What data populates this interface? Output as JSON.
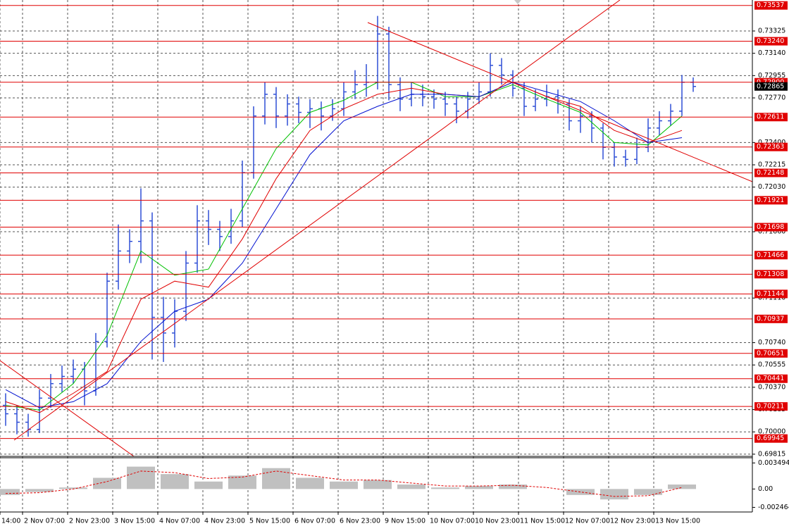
{
  "chart_data": {
    "type": "ohlc",
    "xlim": [
      -2,
      64.75
    ],
    "xticks": [
      {
        "value": -2,
        "label": "14:00"
      },
      {
        "value": 0,
        "label": "2 Nov 07:00"
      },
      {
        "value": 4,
        "label": "2 Nov 23:00"
      },
      {
        "value": 8,
        "label": "3 Nov 15:00"
      },
      {
        "value": 12,
        "label": "4 Nov 07:00"
      },
      {
        "value": 16,
        "label": "4 Nov 23:00"
      },
      {
        "value": 20,
        "label": "5 Nov 15:00"
      },
      {
        "value": 24,
        "label": "6 Nov 07:00"
      },
      {
        "value": 28,
        "label": "6 Nov 23:00"
      },
      {
        "value": 32,
        "label": "9 Nov 15:00"
      },
      {
        "value": 36,
        "label": "10 Nov 07:00"
      },
      {
        "value": 40,
        "label": "10 Nov 23:00"
      },
      {
        "value": 44,
        "label": "11 Nov 15:00"
      },
      {
        "value": 48,
        "label": "12 Nov 07:00"
      },
      {
        "value": 52,
        "label": "12 Nov 23:00"
      },
      {
        "value": 56,
        "label": "13 Nov 15:00"
      }
    ],
    "ylim": [
      0.69797,
      0.73582
    ],
    "yticks": [
      0.73325,
      {
        "value": 0.7314,
        "label": "0.73140"
      },
      0.72955,
      {
        "value": 0.7277,
        "label": "0.72770"
      },
      {
        "value": 0.724,
        "label": "0.72400"
      },
      0.72215,
      {
        "value": 0.7203,
        "label": "0.72030"
      },
      {
        "value": 0.7166,
        "label": "0.71660"
      },
      {
        "value": 0.7111,
        "label": "0.71110"
      },
      {
        "value": 0.7074,
        "label": "0.70740"
      },
      0.70555,
      {
        "value": 0.7037,
        "label": "0.70370"
      },
      0.70185,
      {
        "value": 0.7,
        "label": "0.70000"
      },
      0.69815
    ],
    "grid": true,
    "bars": {
      "color": "#2f4fd6",
      "open": [
        0.7022,
        0.7015,
        0.7008,
        0.7002,
        0.7028,
        0.704,
        0.7046,
        0.7052,
        0.7034,
        0.7075,
        0.7125,
        0.715,
        0.7158,
        0.7175,
        0.7095,
        0.7082,
        0.71,
        0.714,
        0.7175,
        0.7168,
        0.7162,
        0.7175,
        0.7215,
        0.7262,
        0.728,
        0.7262,
        0.7272,
        0.7265,
        0.7268,
        0.7262,
        0.7268,
        0.7282,
        0.7288,
        0.729,
        0.733,
        0.7288,
        0.7276,
        0.728,
        0.7278,
        0.7276,
        0.7272,
        0.7266,
        0.7276,
        0.7282,
        0.7304,
        0.7296,
        0.7285,
        0.727,
        0.7276,
        0.7278,
        0.7272,
        0.7258,
        0.7262,
        0.7252,
        0.7236,
        0.7228,
        0.7226,
        0.7236,
        0.7252,
        0.7258,
        0.7266,
        0.729
      ],
      "high": [
        0.7032,
        0.7022,
        0.7015,
        0.7035,
        0.7048,
        0.7055,
        0.706,
        0.7058,
        0.7082,
        0.7132,
        0.7172,
        0.7168,
        0.7202,
        0.7182,
        0.7112,
        0.711,
        0.715,
        0.7188,
        0.7184,
        0.7175,
        0.7185,
        0.7225,
        0.727,
        0.729,
        0.7286,
        0.728,
        0.7278,
        0.7276,
        0.7274,
        0.7276,
        0.729,
        0.73,
        0.7305,
        0.7345,
        0.7336,
        0.7294,
        0.729,
        0.7288,
        0.7284,
        0.7282,
        0.7278,
        0.7282,
        0.729,
        0.7314,
        0.731,
        0.73,
        0.729,
        0.7284,
        0.7288,
        0.7284,
        0.7276,
        0.727,
        0.7266,
        0.7256,
        0.724,
        0.7234,
        0.7244,
        0.726,
        0.7266,
        0.7272,
        0.7296,
        0.7294
      ],
      "low": [
        0.7005,
        0.6998,
        0.6996,
        0.6999,
        0.702,
        0.7033,
        0.704,
        0.7022,
        0.703,
        0.707,
        0.7118,
        0.714,
        0.714,
        0.706,
        0.7058,
        0.707,
        0.7092,
        0.7132,
        0.7155,
        0.715,
        0.7156,
        0.717,
        0.721,
        0.7255,
        0.7252,
        0.7254,
        0.7256,
        0.7252,
        0.725,
        0.7258,
        0.7262,
        0.7276,
        0.7278,
        0.7284,
        0.7275,
        0.7266,
        0.727,
        0.727,
        0.7268,
        0.7262,
        0.7256,
        0.726,
        0.7272,
        0.7278,
        0.7288,
        0.7278,
        0.7262,
        0.7266,
        0.727,
        0.7264,
        0.725,
        0.7248,
        0.724,
        0.7226,
        0.722,
        0.722,
        0.7222,
        0.7232,
        0.7246,
        0.7254,
        0.7262,
        0.7282
      ],
      "close": [
        0.7015,
        0.7008,
        0.7002,
        0.7028,
        0.704,
        0.7046,
        0.7052,
        0.7034,
        0.7075,
        0.7125,
        0.715,
        0.7158,
        0.7175,
        0.7095,
        0.7082,
        0.71,
        0.714,
        0.7175,
        0.7168,
        0.7162,
        0.7175,
        0.7215,
        0.7262,
        0.728,
        0.7262,
        0.7272,
        0.7265,
        0.7268,
        0.7262,
        0.7268,
        0.7282,
        0.7288,
        0.729,
        0.733,
        0.7288,
        0.7276,
        0.728,
        0.7278,
        0.7276,
        0.7272,
        0.7266,
        0.7276,
        0.7282,
        0.7304,
        0.7296,
        0.7285,
        0.727,
        0.7276,
        0.7278,
        0.7272,
        0.7258,
        0.7262,
        0.7252,
        0.7236,
        0.7228,
        0.7226,
        0.7236,
        0.7252,
        0.7258,
        0.7266,
        0.729,
        0.72865
      ]
    },
    "lines": {
      "x": [
        -1.5,
        1.5,
        4.5,
        7.5,
        10.5,
        13.5,
        16.5,
        19.5,
        22.5,
        25.5,
        28.5,
        31.5,
        34.5,
        37.5,
        40.5,
        43.5,
        46.5,
        49.5,
        52.5,
        55.5,
        58.5
      ],
      "series": [
        {
          "color": "#00c000",
          "values": [
            0.7022,
            0.7018,
            0.704,
            0.708,
            0.715,
            0.713,
            0.7135,
            0.7185,
            0.7235,
            0.7265,
            0.7275,
            0.729,
            0.729,
            0.7278,
            0.7278,
            0.7288,
            0.7276,
            0.7265,
            0.724,
            0.7238,
            0.7262
          ]
        },
        {
          "color": "#e00000",
          "values": [
            0.7025,
            0.7016,
            0.7032,
            0.705,
            0.711,
            0.7125,
            0.712,
            0.716,
            0.721,
            0.725,
            0.7268,
            0.728,
            0.7285,
            0.728,
            0.7278,
            0.729,
            0.7278,
            0.727,
            0.725,
            0.724,
            0.725
          ]
        },
        {
          "color": "#0010d0",
          "values": [
            0.7035,
            0.702,
            0.7025,
            0.704,
            0.7075,
            0.71,
            0.711,
            0.714,
            0.7185,
            0.723,
            0.7258,
            0.727,
            0.728,
            0.728,
            0.7278,
            0.729,
            0.7282,
            0.7274,
            0.7258,
            0.724,
            0.7244
          ]
        }
      ]
    },
    "levels": [
      0.73537,
      {
        "value": 0.7324,
        "label": "0.73240"
      },
      {
        "value": 0.729,
        "label": "0.72900"
      },
      0.72611,
      0.72363,
      0.72148,
      0.71921,
      0.71698,
      0.71466,
      0.71308,
      0.71144,
      0.70937,
      0.70651,
      0.70441,
      0.70211,
      0.69945
    ],
    "level_color": "#e00000",
    "current_price": 0.72865,
    "indicator": {
      "ylim": [
        -0.0028,
        0.004
      ],
      "yticks": [
        0.003494,
        {
          "value": 0,
          "label": "0.00"
        },
        -0.002464
      ],
      "histogram": [
        -0.0008,
        -0.0004,
        0.0002,
        0.0015,
        0.003,
        0.002,
        0.001,
        0.0018,
        0.0028,
        0.0015,
        0.001,
        0.0012,
        0.0006,
        0.0002,
        0.0004,
        0.0006,
        0,
        -0.0008,
        -0.0014,
        -0.0008,
        0.0006
      ],
      "signal": [
        -0.0006,
        -0.0005,
        0,
        0.001,
        0.0024,
        0.0022,
        0.0014,
        0.0016,
        0.0024,
        0.0018,
        0.0012,
        0.0012,
        0.0008,
        0.0004,
        0.0004,
        0.0005,
        0.0002,
        -0.0004,
        -0.001,
        -0.0009,
        0.0002
      ]
    }
  }
}
